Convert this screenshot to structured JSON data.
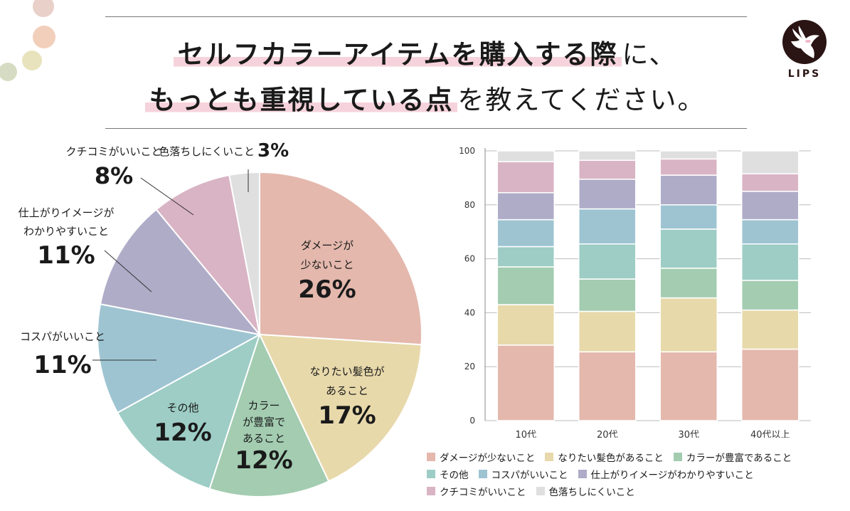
{
  "title": {
    "line1_highlight": "セルフカラーアイテムを購入する際",
    "line1_rest": "に、",
    "line2_highlight": "もっとも重視している点",
    "line2_rest": "を教えてください。"
  },
  "logo": {
    "text": "LIPS",
    "icon": "deer-icon"
  },
  "colors": {
    "damage": "#e4b8ad",
    "hair_color": "#e8d9ab",
    "variety": "#a3ccb1",
    "other": "#9dcdc5",
    "cospa": "#9ec4d2",
    "finish": "#afacc8",
    "review": "#d9b4c4",
    "fade": "#dfdfdf",
    "decor_dots": [
      "#e9d0c8",
      "#f2cfbb",
      "#e9e3bd",
      "#d6dcc3"
    ]
  },
  "chart_data": [
    {
      "type": "pie",
      "slices": [
        {
          "key": "damage",
          "label_lines": [
            "ダメージが",
            "少ないこと"
          ],
          "value": 26,
          "display": "26%"
        },
        {
          "key": "hair_color",
          "label_lines": [
            "なりたい髪色が",
            "あること"
          ],
          "value": 17,
          "display": "17%"
        },
        {
          "key": "variety",
          "label_lines": [
            "カラー",
            "が豊富で",
            "あること"
          ],
          "value": 12,
          "display": "12%"
        },
        {
          "key": "other",
          "label_lines": [
            "その他"
          ],
          "value": 12,
          "display": "12%"
        },
        {
          "key": "cospa",
          "label_lines": [
            "コスパがいいこと"
          ],
          "value": 11,
          "display": "11%"
        },
        {
          "key": "finish",
          "label_lines": [
            "仕上がりイメージが",
            "わかりやすいこと"
          ],
          "value": 11,
          "display": "11%"
        },
        {
          "key": "review",
          "label_lines": [
            "クチコミがいいこと"
          ],
          "value": 8,
          "display": "8%"
        },
        {
          "key": "fade",
          "label_lines": [
            "色落ちしにくいこと"
          ],
          "value": 3,
          "display": "3%"
        }
      ]
    },
    {
      "type": "bar",
      "stacked": true,
      "categories": [
        "10代",
        "20代",
        "30代",
        "40代以上"
      ],
      "ylim": [
        0,
        100
      ],
      "yticks": [
        0,
        20,
        40,
        60,
        80,
        100
      ],
      "grid": true,
      "series": [
        {
          "key": "damage",
          "name": "ダメージが少ないこと",
          "values": [
            28,
            25.5,
            25.5,
            26.5
          ]
        },
        {
          "key": "hair_color",
          "name": "なりたい髪色があること",
          "values": [
            15,
            15,
            20,
            14.5
          ]
        },
        {
          "key": "variety",
          "name": "カラーが豊富であること",
          "values": [
            14,
            12,
            11,
            11
          ]
        },
        {
          "key": "other",
          "name": "その他",
          "values": [
            7.5,
            13,
            14.5,
            13.5
          ]
        },
        {
          "key": "cospa",
          "name": "コスパがいいこと",
          "values": [
            10,
            13,
            9,
            9
          ]
        },
        {
          "key": "finish",
          "name": "仕上がりイメージがわかりやすいこと",
          "values": [
            10,
            11,
            11,
            10.5
          ]
        },
        {
          "key": "review",
          "name": "クチコミがいいこと",
          "values": [
            11.5,
            7,
            6,
            6.5
          ]
        },
        {
          "key": "fade",
          "name": "色落ちしにくいこと",
          "values": [
            4,
            3.5,
            3,
            8.5
          ]
        }
      ],
      "legend": [
        [
          "damage",
          "hair_color",
          "variety"
        ],
        [
          "other",
          "cospa",
          "finish"
        ],
        [
          "review",
          "fade"
        ]
      ]
    }
  ]
}
